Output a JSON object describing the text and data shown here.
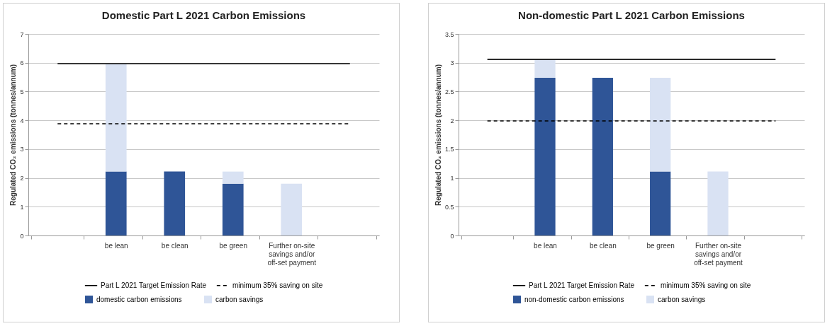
{
  "chart_data": [
    {
      "type": "bar",
      "title": "Domestic Part L 2021 Carbon Emissions",
      "ylabel": "Regulated CO₂ emissions (tonnes/annum)",
      "categories": [
        null,
        "be lean",
        "be clean",
        "be green",
        "Further on-site savings and/or off-set payment",
        null
      ],
      "stacked": true,
      "ylim": [
        0,
        7
      ],
      "yticks": [
        0,
        1,
        2,
        3,
        4,
        5,
        6,
        7
      ],
      "grid": "y",
      "legend": "bottom",
      "series": [
        {
          "name": "domestic carbon emissions",
          "color": "#2f5597",
          "values": [
            null,
            2.22,
            2.22,
            1.8,
            0,
            null
          ]
        },
        {
          "name": "carbon savings",
          "color": "#d9e2f3",
          "values": [
            null,
            3.73,
            0,
            0.42,
            1.8,
            null
          ]
        },
        {
          "name": "Part L 2021 Target Emission Rate",
          "type": "line",
          "line_style": "solid",
          "color": "#000000",
          "values": [
            5.97,
            5.97,
            5.97,
            5.97,
            5.97,
            5.97
          ]
        },
        {
          "name": "minimum 35% saving on site",
          "type": "line",
          "line_style": "dashed",
          "color": "#000000",
          "values": [
            3.88,
            3.88,
            3.88,
            3.88,
            3.88,
            3.88
          ]
        }
      ]
    },
    {
      "type": "bar",
      "title": "Non-domestic Part L 2021 Carbon Emissions",
      "ylabel": "Regulated CO₂ emissions (tonnes/annum)",
      "categories": [
        null,
        "be lean",
        "be clean",
        "be green",
        "Further on-site savings and/or off-set payment",
        null
      ],
      "stacked": true,
      "ylim": [
        0,
        3.5
      ],
      "yticks": [
        0,
        0.5,
        1,
        1.5,
        2,
        2.5,
        3,
        3.5
      ],
      "grid": "y",
      "legend": "bottom",
      "series": [
        {
          "name": "non-domestic carbon emissions",
          "color": "#2f5597",
          "values": [
            null,
            2.74,
            2.74,
            1.11,
            0,
            null
          ]
        },
        {
          "name": "carbon savings",
          "color": "#d9e2f3",
          "values": [
            null,
            0.31,
            0,
            1.63,
            1.11,
            null
          ]
        },
        {
          "name": "Part L 2021 Target Emission Rate",
          "type": "line",
          "line_style": "solid",
          "color": "#000000",
          "values": [
            3.06,
            3.06,
            3.06,
            3.06,
            3.06,
            3.06
          ]
        },
        {
          "name": "minimum 35% saving on site",
          "type": "line",
          "line_style": "dashed",
          "color": "#000000",
          "values": [
            1.99,
            1.99,
            1.99,
            1.99,
            1.99,
            1.99
          ]
        }
      ]
    }
  ]
}
